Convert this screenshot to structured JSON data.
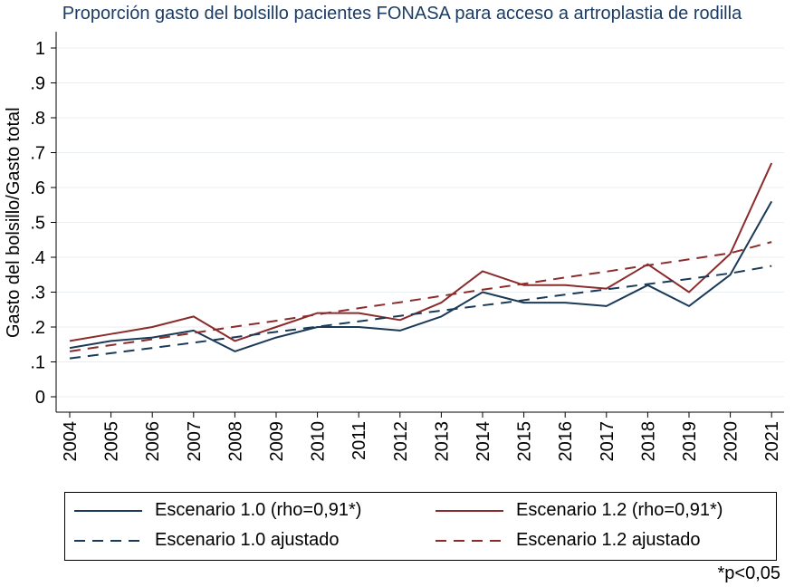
{
  "chart_data": {
    "type": "line",
    "title": "Proporción gasto del bolsillo pacientes FONASA para acceso a artroplastia de rodilla",
    "xlabel": "",
    "ylabel": "Gasto del bolsillo/Gasto total",
    "x": [
      "2004",
      "2005",
      "2006",
      "2007",
      "2008",
      "2009",
      "2010",
      "2011",
      "2012",
      "2013",
      "2014",
      "2015",
      "2016",
      "2017",
      "2018",
      "2019",
      "2020",
      "2021"
    ],
    "yticks": [
      "0",
      ".1",
      ".2",
      ".3",
      ".4",
      ".5",
      ".6",
      ".7",
      ".8",
      ".9",
      "1"
    ],
    "ylim": [
      0,
      1
    ],
    "grid": true,
    "legend_position": "bottom",
    "note": "*p<0,05",
    "series": [
      {
        "name": "Escenario 1.0 (rho=0,91*)",
        "style": "solid",
        "color": "#1a3a57",
        "values": [
          0.14,
          0.16,
          0.17,
          0.19,
          0.13,
          0.17,
          0.2,
          0.2,
          0.19,
          0.23,
          0.3,
          0.27,
          0.27,
          0.26,
          0.32,
          0.26,
          0.35,
          0.56
        ]
      },
      {
        "name": "Escenario 1.2 (rho=0,91*)",
        "style": "solid",
        "color": "#8b2c2c",
        "values": [
          0.16,
          0.18,
          0.2,
          0.23,
          0.16,
          0.2,
          0.24,
          0.24,
          0.22,
          0.27,
          0.36,
          0.32,
          0.32,
          0.31,
          0.38,
          0.3,
          0.41,
          0.67
        ]
      },
      {
        "name": "Escenario 1.0 ajustado",
        "style": "dashed",
        "color": "#1a3a57",
        "values": [
          0.11,
          0.125,
          0.14,
          0.155,
          0.171,
          0.186,
          0.201,
          0.216,
          0.232,
          0.247,
          0.262,
          0.277,
          0.293,
          0.308,
          0.323,
          0.338,
          0.354,
          0.375
        ]
      },
      {
        "name": "Escenario 1.2 ajustado",
        "style": "dashed",
        "color": "#8b2c2c",
        "values": [
          0.13,
          0.148,
          0.165,
          0.183,
          0.201,
          0.218,
          0.236,
          0.254,
          0.271,
          0.289,
          0.307,
          0.324,
          0.342,
          0.359,
          0.377,
          0.394,
          0.412,
          0.444
        ]
      }
    ]
  }
}
